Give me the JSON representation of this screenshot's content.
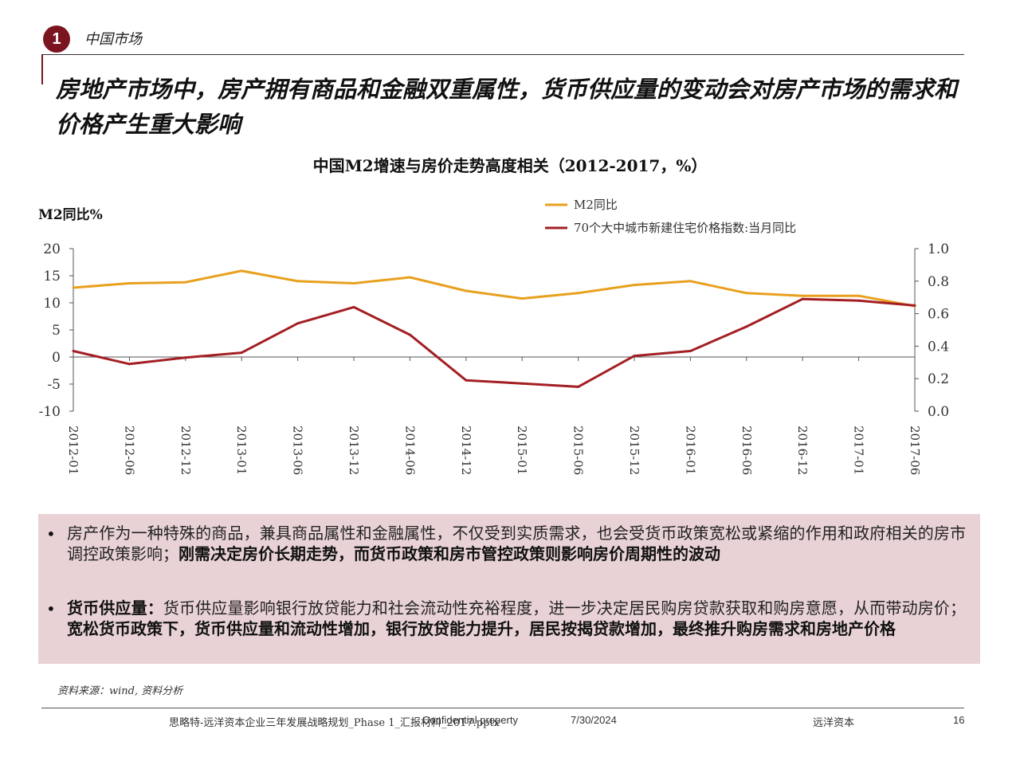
{
  "section": {
    "number": "1",
    "label": "中国市场"
  },
  "headline": "房地产市场中，房产拥有商品和金融双重属性，货币供应量的变动会对房产市场的需求和价格产生重大影响",
  "chart_data": {
    "type": "line",
    "title": "中国M2增速与房价走势高度相关（2012-2017，%）",
    "y_left_label": "M2同比%",
    "x": [
      "2012-01",
      "2012-06",
      "2012-12",
      "2013-01",
      "2013-06",
      "2013-12",
      "2014-06",
      "2014-12",
      "2015-01",
      "2015-06",
      "2015-12",
      "2016-01",
      "2016-06",
      "2016-12",
      "2017-01",
      "2017-06"
    ],
    "y_left_ticks": [
      "20",
      "15",
      "10",
      "5",
      "0",
      "-5",
      "-10"
    ],
    "y_right_ticks": [
      "1.0",
      "0.8",
      "0.6",
      "0.4",
      "0.2",
      "0.0"
    ],
    "ylim_left": [
      -10,
      20
    ],
    "ylim_right": [
      0.0,
      1.0
    ],
    "legend_position": "top-center",
    "series": [
      {
        "name": "M2同比",
        "axis": "left",
        "color": "#e8a01e",
        "values": [
          12.8,
          13.6,
          13.8,
          15.9,
          14.0,
          13.6,
          14.7,
          12.2,
          10.8,
          11.8,
          13.3,
          14.0,
          11.8,
          11.3,
          11.3,
          9.4
        ]
      },
      {
        "name": "70个大中城市新建住宅价格指数:当月同比",
        "axis": "right",
        "color": "#a31f24",
        "values": [
          0.37,
          0.29,
          0.33,
          0.36,
          0.54,
          0.64,
          0.47,
          0.19,
          0.17,
          0.15,
          0.34,
          0.37,
          0.52,
          0.69,
          0.68,
          0.65
        ]
      }
    ]
  },
  "bullets": [
    {
      "plain": "房产作为一种特殊的商品，兼具商品属性和金融属性，不仅受到实质需求，也会受货币政策宽松或紧缩的作用和政府相关的房市调控政策影响；",
      "bold": "刚需决定房价长期走势，而货币政策和房市管控政策则影响房价周期性的波动"
    },
    {
      "lead": "货币供应量：",
      "plain": "货币供应量影响银行放贷能力和社会流动性充裕程度，进一步决定居民购房贷款获取和购房意愿，从而带动房价；",
      "bold": "宽松货币政策下，货币供应量和流动性增加，银行放贷能力提升，居民按揭贷款增加，最终推升购房需求和房地产价格"
    }
  ],
  "source": "资料来源：wind, 资料分析",
  "footer": {
    "doc": "思略特-远洋资本企业三年发展战略规划_Phase 1_汇报材料_2017.pptx",
    "confidential": "Confidential property",
    "date": "7/30/2024",
    "company": "远洋资本",
    "page": "16"
  }
}
